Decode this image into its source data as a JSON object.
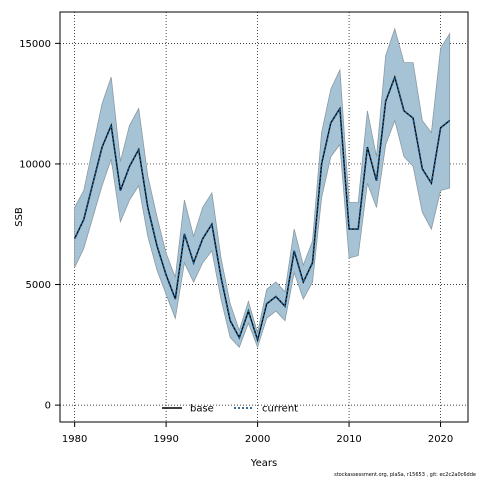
{
  "chart_data": {
    "type": "area",
    "title": "",
    "xlabel": "Years",
    "ylabel": "SSB",
    "xlim": [
      1978.4,
      2023.0
    ],
    "ylim": [
      -700,
      16300
    ],
    "x_ticks": [
      1980,
      1990,
      2000,
      2010,
      2020
    ],
    "y_ticks": [
      0,
      5000,
      10000,
      15000
    ],
    "grid": true,
    "legend_position": "bottom-center",
    "band_color": "#a6c3d6",
    "band_edge_color": "#8a9aa3",
    "x": [
      1980,
      1981,
      1982,
      1983,
      1984,
      1985,
      1986,
      1987,
      1988,
      1989,
      1990,
      1991,
      1992,
      1993,
      1994,
      1995,
      1996,
      1997,
      1998,
      1999,
      2000,
      2001,
      2002,
      2003,
      2004,
      2005,
      2006,
      2007,
      2008,
      2009,
      2010,
      2011,
      2012,
      2013,
      2014,
      2015,
      2016,
      2017,
      2018,
      2019,
      2020,
      2021
    ],
    "band_upper": [
      8200,
      8900,
      10700,
      12500,
      13600,
      10100,
      11600,
      12300,
      9500,
      7800,
      6300,
      5300,
      8500,
      7000,
      8200,
      8800,
      6100,
      4200,
      3100,
      4300,
      3000,
      4800,
      5100,
      4700,
      7300,
      5800,
      6800,
      11300,
      13100,
      13900,
      8400,
      8400,
      12200,
      10300,
      14500,
      15600,
      14200,
      14200,
      11800,
      11300,
      14800,
      15400
    ],
    "band_lower": [
      5700,
      6500,
      7800,
      9100,
      10200,
      7600,
      8500,
      9100,
      7000,
      5600,
      4600,
      3600,
      5900,
      5100,
      5900,
      6400,
      4400,
      2800,
      2400,
      3400,
      2400,
      3600,
      3900,
      3500,
      5500,
      4400,
      5100,
      8600,
      10300,
      10800,
      6100,
      6200,
      9200,
      8200,
      10800,
      11800,
      10300,
      9900,
      8000,
      7300,
      8900,
      9000
    ],
    "series": [
      {
        "name": "base",
        "color": "#000000",
        "dash": "solid",
        "values": [
          6900,
          7700,
          9200,
          10700,
          11600,
          8900,
          9900,
          10600,
          8200,
          6600,
          5400,
          4400,
          7100,
          5900,
          6900,
          7500,
          5300,
          3500,
          2800,
          3900,
          2700,
          4200,
          4500,
          4100,
          6400,
          5100,
          5900,
          10000,
          11700,
          12300,
          7300,
          7300,
          10700,
          9300,
          12600,
          13600,
          12200,
          11900,
          9800,
          9200,
          11500,
          11800
        ]
      },
      {
        "name": "current",
        "color": "#1a5a8a",
        "dash": "dotted",
        "values": [
          6900,
          7700,
          9200,
          10700,
          11600,
          8900,
          9900,
          10600,
          8200,
          6600,
          5400,
          4400,
          7100,
          5900,
          6900,
          7500,
          5300,
          3500,
          2800,
          3900,
          2700,
          4200,
          4500,
          4100,
          6400,
          5100,
          5900,
          10000,
          11700,
          12300,
          7300,
          7300,
          10700,
          9300,
          12600,
          13600,
          12200,
          11900,
          9800,
          9200,
          11500,
          11800
        ]
      }
    ]
  },
  "footer": "stockassessment.org, plaSa, r15653 ,  git: ec2c2a0c6dde"
}
